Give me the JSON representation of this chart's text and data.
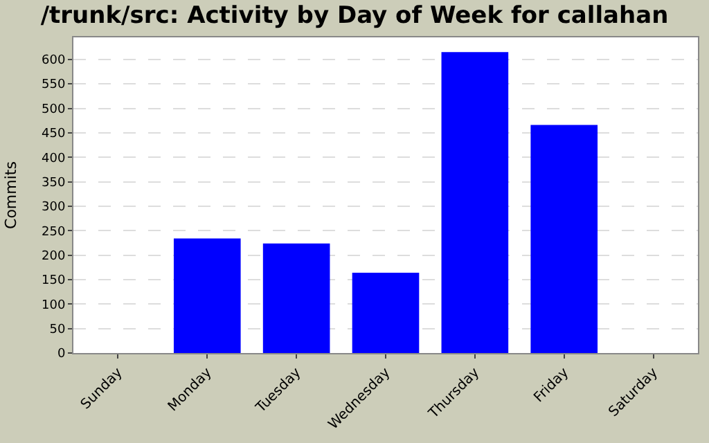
{
  "chart_data": {
    "type": "bar",
    "title": "/trunk/src: Activity by Day of Week for callahan",
    "ylabel": "Commits",
    "categories": [
      "Sunday",
      "Monday",
      "Tuesday",
      "Wednesday",
      "Thursday",
      "Friday",
      "Saturday"
    ],
    "values": [
      0,
      234,
      224,
      164,
      615,
      466,
      0
    ],
    "color": "#0000ff",
    "ylim": [
      0,
      645
    ],
    "yticks": [
      0,
      50,
      100,
      150,
      200,
      250,
      300,
      350,
      400,
      450,
      500,
      550,
      600
    ],
    "grid": "y",
    "legend": false
  }
}
